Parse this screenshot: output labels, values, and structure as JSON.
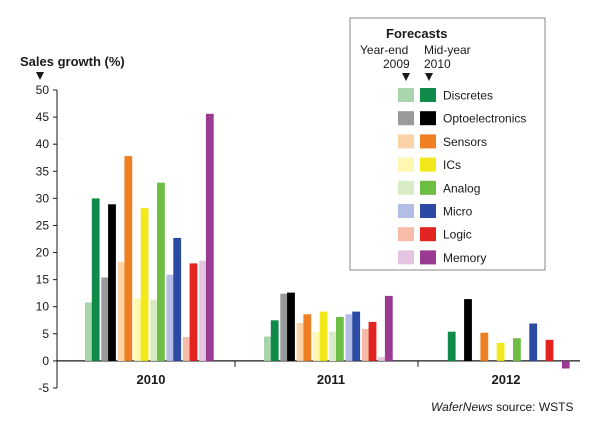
{
  "chart_data": {
    "type": "bar",
    "ylabel": "Sales growth (%)",
    "ylim": [
      -5,
      50
    ],
    "yticks": [
      -5,
      0,
      5,
      10,
      15,
      20,
      25,
      30,
      35,
      40,
      45,
      50
    ],
    "categories": [
      "2010",
      "2011",
      "2012"
    ],
    "legend": {
      "title": "Forecasts",
      "col1": "Year-end 2009",
      "col1_lines": [
        "Year-end",
        "2009"
      ],
      "col2": "Mid-year 2010",
      "col2_lines": [
        "Mid-year",
        "2010"
      ],
      "placement": "top-right"
    },
    "series": [
      {
        "name": "Discretes",
        "color_ye": "#a8d5ac",
        "color_my": "#108a48",
        "ye": [
          10.8,
          4.5,
          null
        ],
        "my": [
          30.0,
          7.5,
          5.4
        ]
      },
      {
        "name": "Optoelectronics",
        "color_ye": "#9a9a9a",
        "color_my": "#000000",
        "ye": [
          15.4,
          12.4,
          null
        ],
        "my": [
          28.9,
          12.6,
          11.4
        ]
      },
      {
        "name": "Sensors",
        "color_ye": "#fcd3a8",
        "color_my": "#ee7f22",
        "ye": [
          18.3,
          7.0,
          null
        ],
        "my": [
          37.8,
          8.6,
          5.2
        ]
      },
      {
        "name": "ICs",
        "color_ye": "#fdf7b0",
        "color_my": "#f3e81a",
        "ye": [
          11.5,
          5.3,
          null
        ],
        "my": [
          28.2,
          9.1,
          3.3
        ]
      },
      {
        "name": "Analog",
        "color_ye": "#d8ecc5",
        "color_my": "#6fbe44",
        "ye": [
          11.3,
          5.4,
          null
        ],
        "my": [
          32.9,
          8.1,
          4.2
        ]
      },
      {
        "name": "Micro",
        "color_ye": "#b3bde5",
        "color_my": "#2b4aa3",
        "ye": [
          15.9,
          8.6,
          null
        ],
        "my": [
          22.7,
          9.1,
          6.9
        ]
      },
      {
        "name": "Logic",
        "color_ye": "#f6bca8",
        "color_my": "#e32320",
        "ye": [
          4.4,
          5.9,
          null
        ],
        "my": [
          18.0,
          7.2,
          3.9
        ]
      },
      {
        "name": "Memory",
        "color_ye": "#e5c6e0",
        "color_my": "#9b3a93",
        "ye": [
          18.5,
          0.7,
          null
        ],
        "my": [
          45.6,
          12.0,
          -1.4
        ]
      }
    ],
    "grid": false
  },
  "source": {
    "brand": "WaferNews",
    "text": " source: WSTS"
  }
}
